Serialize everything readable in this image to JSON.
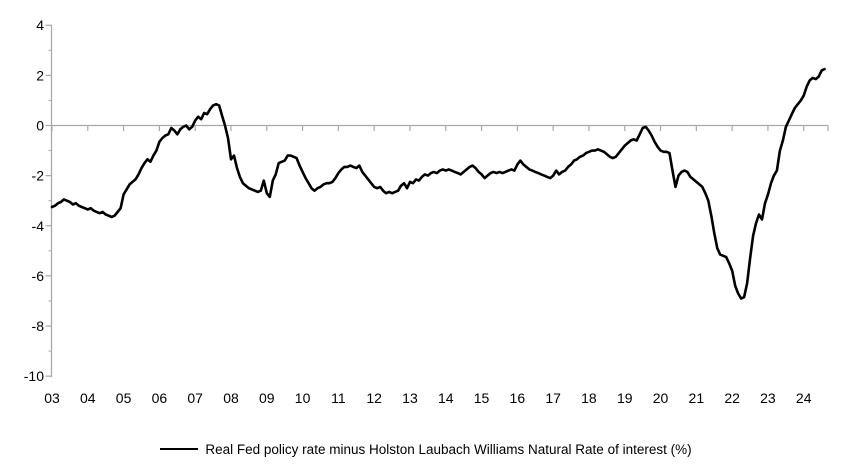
{
  "chart_data": {
    "type": "line",
    "title": "",
    "xlabel": "",
    "ylabel": "",
    "ylim": [
      -10,
      4
    ],
    "y_major_ticks": [
      4,
      2,
      0,
      -2,
      -4,
      -6,
      -8,
      -10
    ],
    "y_minor_ticks": [
      3,
      1,
      -1,
      -3,
      -5,
      -7,
      -9
    ],
    "x_tick_labels": [
      "03",
      "04",
      "05",
      "06",
      "07",
      "08",
      "09",
      "10",
      "11",
      "12",
      "13",
      "14",
      "15",
      "16",
      "17",
      "18",
      "19",
      "20",
      "21",
      "22",
      "23",
      "24"
    ],
    "x_start": "2003-01",
    "x_end": "2024-08",
    "frequency": "monthly",
    "grid": "zero-baseline-only",
    "legend_position": "bottom-center",
    "colors": {
      "series": "#000000",
      "axis": "#a9a9a9",
      "text": "#000000",
      "background": "#ffffff"
    },
    "series": [
      {
        "name": "Real Fed policy rate minus Holston Laubach Williams Natural Rate of interest (%)",
        "values": [
          -3.25,
          -3.2,
          -3.1,
          -3.05,
          -2.95,
          -3.0,
          -3.05,
          -3.15,
          -3.1,
          -3.2,
          -3.25,
          -3.3,
          -3.35,
          -3.3,
          -3.4,
          -3.45,
          -3.5,
          -3.45,
          -3.55,
          -3.6,
          -3.65,
          -3.6,
          -3.45,
          -3.3,
          -2.75,
          -2.55,
          -2.35,
          -2.25,
          -2.15,
          -1.95,
          -1.7,
          -1.5,
          -1.35,
          -1.45,
          -1.2,
          -1.0,
          -0.65,
          -0.5,
          -0.4,
          -0.35,
          -0.1,
          -0.2,
          -0.35,
          -0.15,
          -0.05,
          0.0,
          -0.15,
          -0.05,
          0.2,
          0.35,
          0.25,
          0.5,
          0.45,
          0.65,
          0.8,
          0.85,
          0.8,
          0.4,
          0.0,
          -0.5,
          -1.35,
          -1.2,
          -1.7,
          -2.05,
          -2.3,
          -2.4,
          -2.5,
          -2.55,
          -2.6,
          -2.65,
          -2.6,
          -2.2,
          -2.7,
          -2.85,
          -2.2,
          -1.95,
          -1.5,
          -1.45,
          -1.4,
          -1.2,
          -1.2,
          -1.25,
          -1.3,
          -1.6,
          -1.85,
          -2.1,
          -2.3,
          -2.5,
          -2.6,
          -2.5,
          -2.45,
          -2.35,
          -2.3,
          -2.3,
          -2.25,
          -2.1,
          -1.9,
          -1.75,
          -1.65,
          -1.65,
          -1.6,
          -1.65,
          -1.7,
          -1.6,
          -1.85,
          -2.0,
          -2.15,
          -2.3,
          -2.45,
          -2.5,
          -2.45,
          -2.6,
          -2.7,
          -2.65,
          -2.7,
          -2.65,
          -2.6,
          -2.4,
          -2.3,
          -2.5,
          -2.25,
          -2.3,
          -2.15,
          -2.2,
          -2.05,
          -1.95,
          -2.0,
          -1.9,
          -1.85,
          -1.9,
          -1.8,
          -1.75,
          -1.8,
          -1.75,
          -1.8,
          -1.85,
          -1.9,
          -1.95,
          -1.85,
          -1.75,
          -1.65,
          -1.6,
          -1.7,
          -1.85,
          -1.95,
          -2.1,
          -2.0,
          -1.9,
          -1.85,
          -1.9,
          -1.85,
          -1.9,
          -1.85,
          -1.8,
          -1.75,
          -1.8,
          -1.55,
          -1.4,
          -1.55,
          -1.65,
          -1.75,
          -1.8,
          -1.85,
          -1.9,
          -1.95,
          -2.0,
          -2.05,
          -2.1,
          -2.0,
          -1.8,
          -1.95,
          -1.85,
          -1.8,
          -1.65,
          -1.55,
          -1.4,
          -1.35,
          -1.25,
          -1.2,
          -1.1,
          -1.05,
          -1.0,
          -1.0,
          -0.95,
          -1.0,
          -1.05,
          -1.15,
          -1.25,
          -1.3,
          -1.25,
          -1.1,
          -0.95,
          -0.8,
          -0.7,
          -0.6,
          -0.55,
          -0.6,
          -0.35,
          -0.1,
          -0.05,
          -0.2,
          -0.4,
          -0.65,
          -0.85,
          -1.0,
          -1.05,
          -1.05,
          -1.1,
          -1.8,
          -2.45,
          -2.0,
          -1.85,
          -1.8,
          -1.85,
          -2.05,
          -2.15,
          -2.25,
          -2.35,
          -2.45,
          -2.7,
          -3.0,
          -3.6,
          -4.3,
          -4.9,
          -5.15,
          -5.2,
          -5.25,
          -5.5,
          -5.8,
          -6.4,
          -6.7,
          -6.9,
          -6.85,
          -6.3,
          -5.3,
          -4.4,
          -3.9,
          -3.55,
          -3.75,
          -3.1,
          -2.75,
          -2.3,
          -2.0,
          -1.8,
          -1.0,
          -0.6,
          -0.05,
          0.2,
          0.45,
          0.7,
          0.85,
          1.0,
          1.2,
          1.55,
          1.8,
          1.9,
          1.85,
          1.95,
          2.2,
          2.25
        ]
      }
    ]
  },
  "legend": {
    "label": "Real Fed policy rate minus Holston Laubach Williams Natural Rate of interest (%)"
  }
}
